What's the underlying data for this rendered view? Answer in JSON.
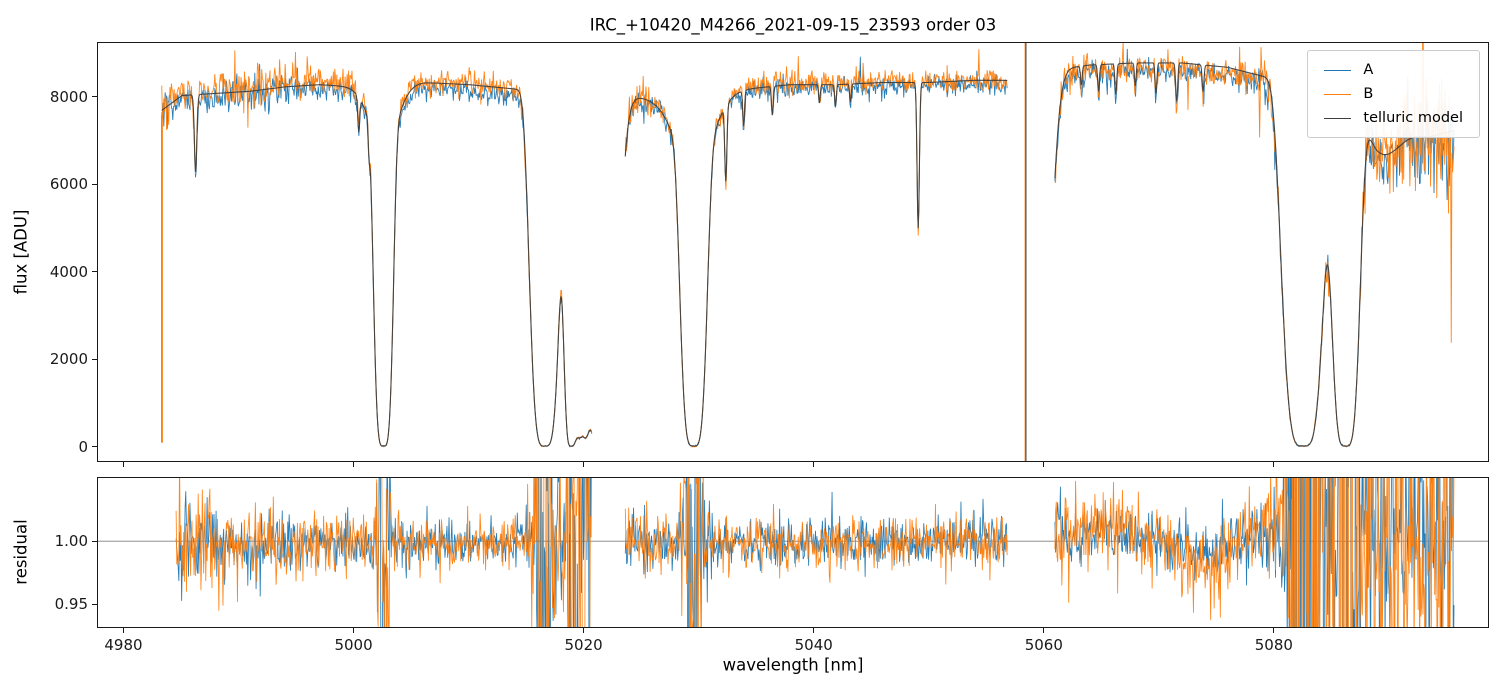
{
  "figure": {
    "title": "IRC_+10420_M4266_2021-09-15_23593  order 03",
    "background": "#ffffff"
  },
  "chart_data": [
    {
      "type": "line",
      "panel": "flux",
      "title": "IRC_+10420_M4266_2021-09-15_23593  order 03",
      "ylabel": "flux [ADU]",
      "xlim": [
        4977.7,
        5098.7
      ],
      "ylim": [
        -343,
        9257
      ],
      "yticks": [
        0,
        2000,
        4000,
        6000,
        8000
      ],
      "xticks": [
        4980,
        5000,
        5020,
        5040,
        5060,
        5080
      ],
      "grid": false,
      "legend": {
        "position": "upper right",
        "entries": [
          {
            "label": "A",
            "color": "#1f77b4"
          },
          {
            "label": "B",
            "color": "#ff7f0e"
          },
          {
            "label": "telluric model",
            "color": "#3d3d3d"
          }
        ]
      },
      "segments": [
        [
          4983.25,
          5020.7
        ],
        [
          5023.6,
          5056.9
        ],
        [
          5061.0,
          5095.8
        ]
      ],
      "continuum_anchors": [
        [
          4983.2,
          7700
        ],
        [
          4985,
          8050
        ],
        [
          4988,
          8100
        ],
        [
          4991,
          8150
        ],
        [
          4994,
          8250
        ],
        [
          4997,
          8300
        ],
        [
          5000,
          8250
        ],
        [
          5003,
          8300
        ],
        [
          5006,
          8350
        ],
        [
          5010,
          8300
        ],
        [
          5014,
          8200
        ],
        [
          5018,
          8100
        ],
        [
          5022,
          8050
        ],
        [
          5026,
          8000
        ],
        [
          5030,
          8100
        ],
        [
          5034,
          8200
        ],
        [
          5038,
          8300
        ],
        [
          5042,
          8300
        ],
        [
          5046,
          8350
        ],
        [
          5050,
          8350
        ],
        [
          5054,
          8400
        ],
        [
          5057,
          8400
        ],
        [
          5061,
          8650
        ],
        [
          5064,
          8750
        ],
        [
          5068,
          8800
        ],
        [
          5072,
          8800
        ],
        [
          5076,
          8700
        ],
        [
          5079,
          8500
        ],
        [
          5082,
          8400
        ],
        [
          5086,
          8300
        ],
        [
          5089,
          7500
        ],
        [
          5091,
          7300
        ],
        [
          5093.5,
          7100
        ],
        [
          5095.8,
          7250
        ]
      ],
      "absorption_features": [
        {
          "c": 4986.2,
          "s": 0.15,
          "d": 0.22,
          "p": 2
        },
        {
          "c": 5000.4,
          "s": 0.12,
          "d": 0.1,
          "p": 2
        },
        {
          "c": 5001.3,
          "s": 0.1,
          "d": 0.08,
          "p": 2
        },
        {
          "c": 5002.55,
          "s": 0.95,
          "d": 1.0,
          "p": 4
        },
        {
          "c": 5002.55,
          "s": 1.6,
          "d": 0.18,
          "p": 2
        },
        {
          "c": 5016.6,
          "s": 1.5,
          "d": 1.0,
          "p": 4
        },
        {
          "c": 5018.9,
          "s": 0.8,
          "d": 1.0,
          "p": 4
        },
        {
          "c": 5019.9,
          "s": 0.8,
          "d": 0.95,
          "p": 4
        },
        {
          "c": 5020.9,
          "s": 1.1,
          "d": 0.97,
          "p": 2
        },
        {
          "c": 5022.3,
          "s": 1.0,
          "d": 0.92,
          "p": 2
        },
        {
          "c": 5029.55,
          "s": 1.3,
          "d": 1.0,
          "p": 4
        },
        {
          "c": 5029.55,
          "s": 2.2,
          "d": 0.22,
          "p": 2
        },
        {
          "c": 5032.35,
          "s": 0.13,
          "d": 0.22,
          "p": 2
        },
        {
          "c": 5033.9,
          "s": 0.11,
          "d": 0.1,
          "p": 2
        },
        {
          "c": 5036.4,
          "s": 0.11,
          "d": 0.08,
          "p": 2
        },
        {
          "c": 5040.5,
          "s": 0.1,
          "d": 0.05,
          "p": 2
        },
        {
          "c": 5041.9,
          "s": 0.1,
          "d": 0.06,
          "p": 2
        },
        {
          "c": 5043.2,
          "s": 0.1,
          "d": 0.05,
          "p": 2
        },
        {
          "c": 5049.1,
          "s": 0.14,
          "d": 0.4,
          "p": 2
        },
        {
          "c": 5059.8,
          "s": 1.1,
          "d": 0.95,
          "p": 2
        },
        {
          "c": 5063.3,
          "s": 0.1,
          "d": 0.05,
          "p": 2
        },
        {
          "c": 5064.8,
          "s": 0.11,
          "d": 0.07,
          "p": 2
        },
        {
          "c": 5066.3,
          "s": 0.11,
          "d": 0.08,
          "p": 2
        },
        {
          "c": 5068.0,
          "s": 0.1,
          "d": 0.06,
          "p": 2
        },
        {
          "c": 5069.8,
          "s": 0.11,
          "d": 0.08,
          "p": 2
        },
        {
          "c": 5071.6,
          "s": 0.12,
          "d": 0.1,
          "p": 2
        },
        {
          "c": 5073.9,
          "s": 0.11,
          "d": 0.07,
          "p": 2
        },
        {
          "c": 5082.6,
          "s": 2.1,
          "d": 1.0,
          "p": 4
        },
        {
          "c": 5086.3,
          "s": 1.43,
          "d": 1.0,
          "p": 4
        },
        {
          "c": 5089.5,
          "s": 2.0,
          "d": 0.1,
          "p": 2
        }
      ],
      "edge_spike": {
        "x": 4983.25,
        "y0": 80,
        "y1": 7600
      },
      "gap_spike": {
        "x": 5058.4
      },
      "series": [
        {
          "name": "A",
          "color": "#1f77b4",
          "amp_mul": 1.0,
          "offset_anchors": [
            [
              4983,
              -0.008
            ],
            [
              4995,
              -0.006
            ],
            [
              5005,
              -0.014
            ],
            [
              5015,
              -0.02
            ],
            [
              5030,
              -0.006
            ],
            [
              5050,
              -0.008
            ],
            [
              5063,
              -0.018
            ],
            [
              5070,
              -0.022
            ],
            [
              5076,
              -0.025
            ],
            [
              5082,
              -0.01
            ],
            [
              5090,
              -0.02
            ],
            [
              5096,
              -0.02
            ]
          ]
        },
        {
          "name": "B",
          "color": "#ff7f0e",
          "amp_mul": 1.3,
          "offset_anchors": [
            [
              4983,
              0.004
            ],
            [
              4995,
              0.012
            ],
            [
              5005,
              0.004
            ],
            [
              5015,
              0.0
            ],
            [
              5030,
              0.006
            ],
            [
              5050,
              0.004
            ],
            [
              5063,
              -0.008
            ],
            [
              5070,
              -0.012
            ],
            [
              5076,
              -0.015
            ],
            [
              5082,
              0.0
            ],
            [
              5090,
              0.005
            ],
            [
              5096,
              0.01
            ]
          ]
        }
      ],
      "noise_amp_anchors": [
        [
          4983,
          0.028
        ],
        [
          4987,
          0.02
        ],
        [
          4992,
          0.024
        ],
        [
          4997,
          0.018
        ],
        [
          5002,
          0.014
        ],
        [
          5008,
          0.012
        ],
        [
          5014,
          0.014
        ],
        [
          5020,
          0.03
        ],
        [
          5024,
          0.018
        ],
        [
          5030,
          0.014
        ],
        [
          5040,
          0.012
        ],
        [
          5050,
          0.012
        ],
        [
          5056,
          0.014
        ],
        [
          5061,
          0.018
        ],
        [
          5070,
          0.012
        ],
        [
          5078,
          0.018
        ],
        [
          5083,
          0.045
        ],
        [
          5088,
          0.05
        ],
        [
          5092,
          0.07
        ],
        [
          5098,
          0.09
        ]
      ]
    },
    {
      "type": "line",
      "panel": "residual",
      "xlabel": "wavelength [nm]",
      "ylabel": "residual",
      "xlim": [
        4977.7,
        5098.7
      ],
      "ylim": [
        0.931,
        1.0508
      ],
      "yticks": [
        0.95,
        1.0
      ],
      "xticks": [
        4980,
        5000,
        5020,
        5040,
        5060,
        5080
      ],
      "hline": 1.0,
      "segments": [
        [
          4984.5,
          5020.7
        ],
        [
          5023.6,
          5056.9
        ],
        [
          5061.0,
          5095.8
        ]
      ],
      "noise_amp_anchors": [
        [
          4984,
          0.018
        ],
        [
          4990,
          0.014
        ],
        [
          4997,
          0.011
        ],
        [
          5005,
          0.008
        ],
        [
          5012,
          0.008
        ],
        [
          5019,
          0.02
        ],
        [
          5025,
          0.011
        ],
        [
          5035,
          0.009
        ],
        [
          5045,
          0.009
        ],
        [
          5055,
          0.01
        ],
        [
          5062,
          0.013
        ],
        [
          5068,
          0.011
        ],
        [
          5075,
          0.013
        ],
        [
          5080,
          0.018
        ],
        [
          5084,
          0.05
        ],
        [
          5090,
          0.06
        ],
        [
          5098,
          0.07
        ]
      ],
      "systematic_anchors": [
        [
          4984,
          0.0
        ],
        [
          5000,
          -0.002
        ],
        [
          5020,
          0.0
        ],
        [
          5030,
          -0.003
        ],
        [
          5040,
          -0.002
        ],
        [
          5055,
          0.0
        ],
        [
          5062,
          0.004
        ],
        [
          5065,
          0.012
        ],
        [
          5068,
          0.008
        ],
        [
          5071,
          -0.004
        ],
        [
          5074,
          -0.016
        ],
        [
          5076,
          -0.01
        ],
        [
          5078,
          0.006
        ],
        [
          5081,
          0.01
        ],
        [
          5085,
          0.0
        ],
        [
          5090,
          0.0
        ],
        [
          5098,
          0.0
        ]
      ],
      "series": [
        {
          "name": "A",
          "color": "#1f77b4",
          "amp_mul": 1.0,
          "sys_mul": 0.7
        },
        {
          "name": "B",
          "color": "#ff7f0e",
          "amp_mul": 1.2,
          "sys_mul": 1.3
        }
      ]
    }
  ]
}
